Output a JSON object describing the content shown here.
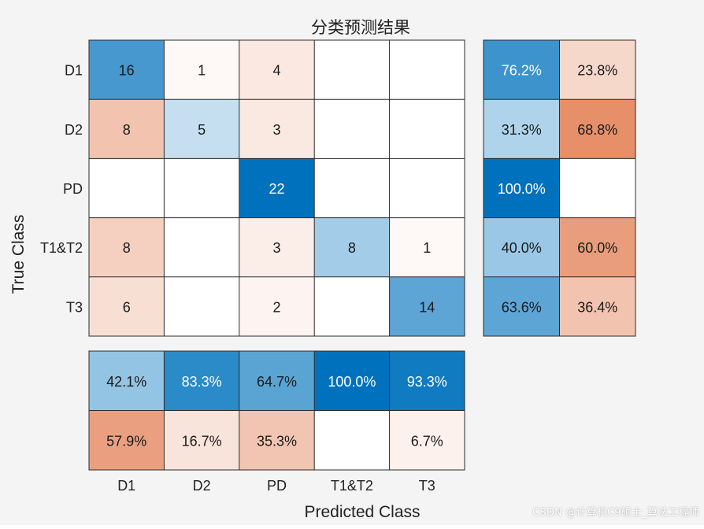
{
  "chart_data": {
    "type": "heatmap",
    "title": "分类预测结果",
    "xlabel": "Predicted Class",
    "ylabel": "True Class",
    "classes": [
      "D1",
      "D2",
      "PD",
      "T1&T2",
      "T3"
    ],
    "matrix": [
      [
        16,
        1,
        4,
        null,
        null
      ],
      [
        8,
        5,
        3,
        null,
        null
      ],
      [
        null,
        null,
        22,
        null,
        null
      ],
      [
        8,
        null,
        3,
        8,
        1
      ],
      [
        6,
        null,
        2,
        null,
        14
      ]
    ],
    "row_summary": {
      "correct": [
        "76.2%",
        "31.3%",
        "100.0%",
        "40.0%",
        "63.6%"
      ],
      "incorrect": [
        "23.8%",
        "68.8%",
        "",
        "60.0%",
        "36.4%"
      ]
    },
    "column_summary": {
      "correct": [
        "42.1%",
        "83.3%",
        "64.7%",
        "100.0%",
        "93.3%"
      ],
      "incorrect": [
        "57.9%",
        "16.7%",
        "35.3%",
        "",
        "6.7%"
      ]
    },
    "colors": {
      "correct_max": "#0072bd",
      "incorrect_max": "#d95319",
      "background": "#f4f4f4"
    }
  },
  "watermark": "CSDN @计算机C9硕士_算法工程师"
}
